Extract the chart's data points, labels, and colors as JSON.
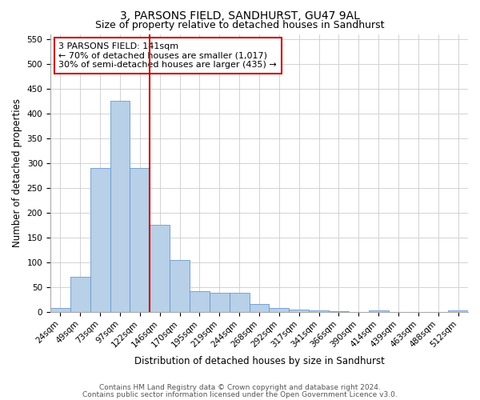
{
  "title": "3, PARSONS FIELD, SANDHURST, GU47 9AL",
  "subtitle": "Size of property relative to detached houses in Sandhurst",
  "xlabel": "Distribution of detached houses by size in Sandhurst",
  "ylabel": "Number of detached properties",
  "categories": [
    "24sqm",
    "49sqm",
    "73sqm",
    "97sqm",
    "122sqm",
    "146sqm",
    "170sqm",
    "195sqm",
    "219sqm",
    "244sqm",
    "268sqm",
    "292sqm",
    "317sqm",
    "341sqm",
    "366sqm",
    "390sqm",
    "414sqm",
    "439sqm",
    "463sqm",
    "488sqm",
    "512sqm"
  ],
  "values": [
    7,
    70,
    290,
    425,
    290,
    175,
    105,
    42,
    38,
    38,
    15,
    8,
    4,
    2,
    1,
    0,
    2,
    0,
    0,
    0,
    2
  ],
  "bar_color": "#b8d0e8",
  "bar_edge_color": "#6699cc",
  "vline_x": 4.5,
  "vline_color": "#cc0000",
  "ylim": [
    0,
    560
  ],
  "yticks": [
    0,
    50,
    100,
    150,
    200,
    250,
    300,
    350,
    400,
    450,
    500,
    550
  ],
  "annotation_line1": "3 PARSONS FIELD: 141sqm",
  "annotation_line2": "← 70% of detached houses are smaller (1,017)",
  "annotation_line3": "30% of semi-detached houses are larger (435) →",
  "annotation_box_color": "#ffffff",
  "annotation_box_edge": "#cc0000",
  "footer_line1": "Contains HM Land Registry data © Crown copyright and database right 2024.",
  "footer_line2": "Contains public sector information licensed under the Open Government Licence v3.0.",
  "bg_color": "#ffffff",
  "grid_color": "#cccccc",
  "title_fontsize": 10,
  "subtitle_fontsize": 9,
  "axis_label_fontsize": 8.5,
  "tick_fontsize": 7.5,
  "annotation_fontsize": 8,
  "footer_fontsize": 6.5
}
